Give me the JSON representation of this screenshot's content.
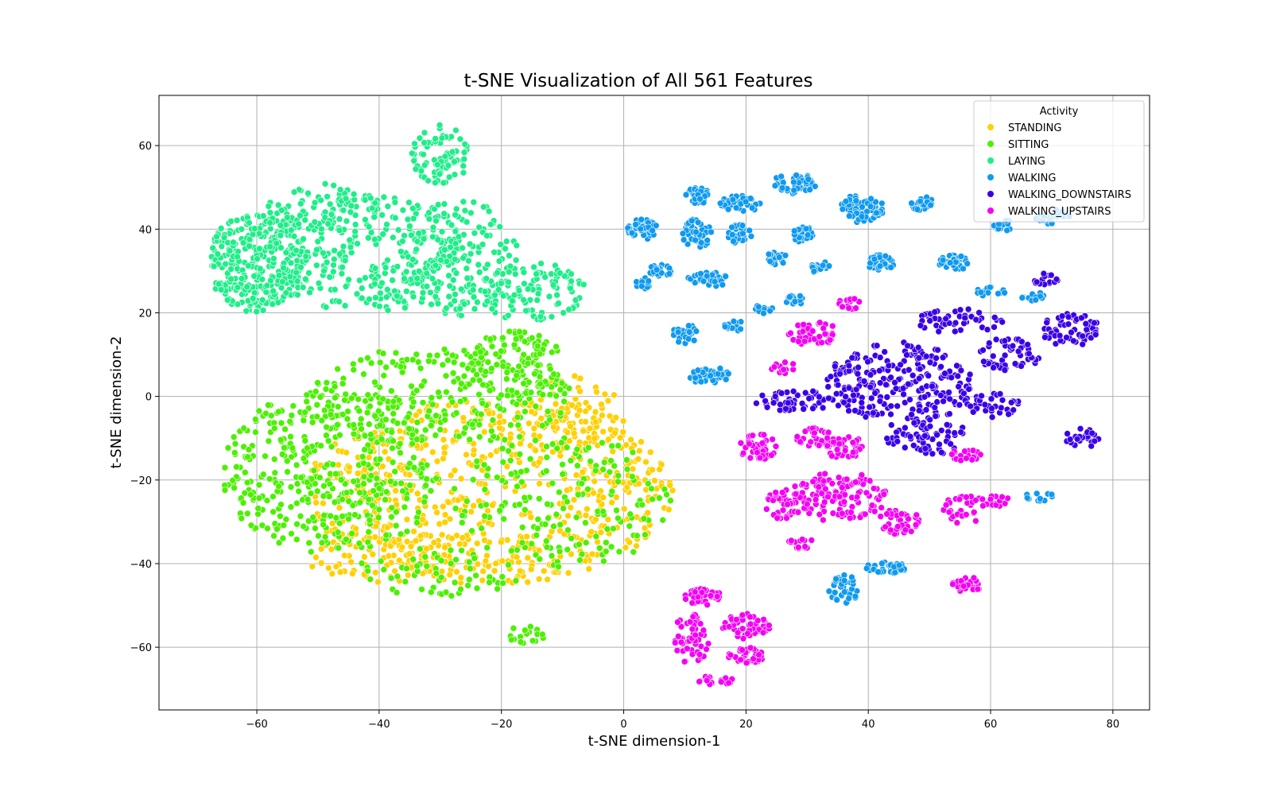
{
  "chart_data": {
    "type": "scatter",
    "title": "t-SNE Visualization of All 561 Features",
    "xlabel": "t-SNE dimension-1",
    "ylabel": "t-SNE dimension-2",
    "xlim": [
      -76,
      86
    ],
    "ylim": [
      -75,
      72
    ],
    "xticks": [
      -60,
      -40,
      -20,
      0,
      20,
      40,
      60,
      80
    ],
    "yticks": [
      -60,
      -40,
      -20,
      0,
      20,
      40,
      60
    ],
    "xtick_labels": [
      "−60",
      "−40",
      "−20",
      "0",
      "20",
      "40",
      "60",
      "80"
    ],
    "ytick_labels": [
      "−60",
      "−40",
      "−20",
      "0",
      "20",
      "40",
      "60"
    ],
    "grid": true,
    "legend": {
      "title": "Activity",
      "placement": "top-right"
    },
    "series": [
      {
        "name": "STANDING",
        "color": "#ffd000",
        "clusters": [
          {
            "cx": -22,
            "cy": -23,
            "rx": 30,
            "ry": 22,
            "n": 650
          },
          {
            "cx": -8,
            "cy": -5,
            "rx": 8,
            "ry": 10,
            "n": 90
          },
          {
            "cx": -40,
            "cy": -38,
            "rx": 12,
            "ry": 7,
            "n": 90
          }
        ]
      },
      {
        "name": "SITTING",
        "color": "#4cf000",
        "clusters": [
          {
            "cx": -48,
            "cy": -18,
            "rx": 18,
            "ry": 20,
            "n": 420
          },
          {
            "cx": -30,
            "cy": 0,
            "rx": 22,
            "ry": 12,
            "n": 260
          },
          {
            "cx": -18,
            "cy": 8,
            "rx": 8,
            "ry": 8,
            "n": 110
          },
          {
            "cx": -10,
            "cy": -25,
            "rx": 18,
            "ry": 16,
            "n": 180
          },
          {
            "cx": -30,
            "cy": -42,
            "rx": 14,
            "ry": 6,
            "n": 60
          },
          {
            "cx": -16,
            "cy": -57,
            "rx": 3,
            "ry": 2.5,
            "n": 18
          }
        ]
      },
      {
        "name": "LAYING",
        "color": "#1fee88",
        "clusters": [
          {
            "cx": -60,
            "cy": 32,
            "rx": 8,
            "ry": 12,
            "n": 300
          },
          {
            "cx": -42,
            "cy": 34,
            "rx": 16,
            "ry": 14,
            "n": 260
          },
          {
            "cx": -27,
            "cy": 33,
            "rx": 10,
            "ry": 14,
            "n": 190
          },
          {
            "cx": -30,
            "cy": 58,
            "rx": 5,
            "ry": 7,
            "n": 80
          },
          {
            "cx": -15,
            "cy": 25,
            "rx": 9,
            "ry": 7,
            "n": 110
          },
          {
            "cx": -50,
            "cy": 45,
            "rx": 10,
            "ry": 6,
            "n": 80
          }
        ]
      },
      {
        "name": "WALKING",
        "color": "#0f9af0",
        "clusters": [
          {
            "cx": 3,
            "cy": 40,
            "rx": 2.5,
            "ry": 2.5,
            "n": 45
          },
          {
            "cx": 12,
            "cy": 48,
            "rx": 2,
            "ry": 2,
            "n": 30
          },
          {
            "cx": 12,
            "cy": 39,
            "rx": 2.5,
            "ry": 3.5,
            "n": 50
          },
          {
            "cx": 19,
            "cy": 46,
            "rx": 3.5,
            "ry": 2,
            "n": 45
          },
          {
            "cx": 19,
            "cy": 39,
            "rx": 2,
            "ry": 2.5,
            "n": 30
          },
          {
            "cx": 28,
            "cy": 51,
            "rx": 3.5,
            "ry": 2.5,
            "n": 50
          },
          {
            "cx": 29,
            "cy": 39,
            "rx": 2,
            "ry": 2,
            "n": 25
          },
          {
            "cx": 39,
            "cy": 45,
            "rx": 3.5,
            "ry": 3.5,
            "n": 70
          },
          {
            "cx": 49,
            "cy": 46,
            "rx": 2,
            "ry": 1.8,
            "n": 25
          },
          {
            "cx": 6,
            "cy": 30,
            "rx": 2,
            "ry": 1.5,
            "n": 25
          },
          {
            "cx": 14,
            "cy": 28,
            "rx": 3.5,
            "ry": 1.8,
            "n": 40
          },
          {
            "cx": 3,
            "cy": 27,
            "rx": 1.5,
            "ry": 1.5,
            "n": 15
          },
          {
            "cx": 25,
            "cy": 33,
            "rx": 1.8,
            "ry": 1.5,
            "n": 20
          },
          {
            "cx": 32,
            "cy": 31,
            "rx": 1.8,
            "ry": 1.5,
            "n": 20
          },
          {
            "cx": 42,
            "cy": 32,
            "rx": 2.5,
            "ry": 1.8,
            "n": 35
          },
          {
            "cx": 54,
            "cy": 32,
            "rx": 2.5,
            "ry": 1.8,
            "n": 35
          },
          {
            "cx": 23,
            "cy": 21,
            "rx": 1.5,
            "ry": 1.2,
            "n": 15
          },
          {
            "cx": 28,
            "cy": 23,
            "rx": 1.8,
            "ry": 1.2,
            "n": 15
          },
          {
            "cx": 18,
            "cy": 17,
            "rx": 1.5,
            "ry": 1.5,
            "n": 15
          },
          {
            "cx": 10,
            "cy": 15,
            "rx": 2,
            "ry": 2.5,
            "n": 30
          },
          {
            "cx": 14,
            "cy": 5,
            "rx": 3.5,
            "ry": 2,
            "n": 45
          },
          {
            "cx": 60,
            "cy": 25,
            "rx": 2.5,
            "ry": 1.2,
            "n": 18
          },
          {
            "cx": 62,
            "cy": 41,
            "rx": 1.5,
            "ry": 1.5,
            "n": 15
          },
          {
            "cx": 70,
            "cy": 43,
            "rx": 3,
            "ry": 1.8,
            "n": 25
          },
          {
            "cx": 67,
            "cy": 24,
            "rx": 2,
            "ry": 1.2,
            "n": 15
          },
          {
            "cx": 68,
            "cy": -24,
            "rx": 2.5,
            "ry": 1,
            "n": 15
          },
          {
            "cx": 36,
            "cy": -46,
            "rx": 2.5,
            "ry": 3.5,
            "n": 40
          },
          {
            "cx": 43,
            "cy": -41,
            "rx": 3.5,
            "ry": 1.5,
            "n": 35
          }
        ]
      },
      {
        "name": "WALKING_DOWNSTAIRS",
        "color": "#3a00e8",
        "clusters": [
          {
            "cx": 45,
            "cy": 3,
            "rx": 12,
            "ry": 10,
            "n": 260
          },
          {
            "cx": 28,
            "cy": -1,
            "rx": 7,
            "ry": 2.5,
            "n": 50
          },
          {
            "cx": 55,
            "cy": 18,
            "rx": 7,
            "ry": 3,
            "n": 50
          },
          {
            "cx": 63,
            "cy": 10,
            "rx": 5,
            "ry": 4,
            "n": 55
          },
          {
            "cx": 73,
            "cy": 16,
            "rx": 5,
            "ry": 4,
            "n": 60
          },
          {
            "cx": 69,
            "cy": 28,
            "rx": 2,
            "ry": 1.5,
            "n": 15
          },
          {
            "cx": 50,
            "cy": -10,
            "rx": 7,
            "ry": 4,
            "n": 60
          },
          {
            "cx": 75,
            "cy": -10,
            "rx": 3,
            "ry": 2.5,
            "n": 25
          },
          {
            "cx": 60,
            "cy": -2,
            "rx": 5,
            "ry": 3,
            "n": 40
          }
        ]
      },
      {
        "name": "WALKING_UPSTAIRS",
        "color": "#f400f4",
        "clusters": [
          {
            "cx": 31,
            "cy": 15,
            "rx": 4,
            "ry": 3,
            "n": 45
          },
          {
            "cx": 37,
            "cy": 22,
            "rx": 2,
            "ry": 1.5,
            "n": 15
          },
          {
            "cx": 26,
            "cy": 7,
            "rx": 2,
            "ry": 1.5,
            "n": 12
          },
          {
            "cx": 22,
            "cy": -12,
            "rx": 3,
            "ry": 3.5,
            "n": 45
          },
          {
            "cx": 31,
            "cy": -10,
            "rx": 3,
            "ry": 2.5,
            "n": 30
          },
          {
            "cx": 36,
            "cy": -12,
            "rx": 3,
            "ry": 3,
            "n": 40
          },
          {
            "cx": 35,
            "cy": -24,
            "rx": 8,
            "ry": 6,
            "n": 130
          },
          {
            "cx": 26,
            "cy": -26,
            "rx": 3,
            "ry": 4,
            "n": 40
          },
          {
            "cx": 45,
            "cy": -30,
            "rx": 3.5,
            "ry": 3,
            "n": 45
          },
          {
            "cx": 29,
            "cy": -35,
            "rx": 2,
            "ry": 1.5,
            "n": 15
          },
          {
            "cx": 56,
            "cy": -14,
            "rx": 2.5,
            "ry": 1.5,
            "n": 20
          },
          {
            "cx": 56,
            "cy": -27,
            "rx": 4,
            "ry": 3.5,
            "n": 35
          },
          {
            "cx": 61,
            "cy": -25,
            "rx": 2,
            "ry": 1.5,
            "n": 12
          },
          {
            "cx": 56,
            "cy": -45,
            "rx": 2.5,
            "ry": 2,
            "n": 30
          },
          {
            "cx": 13,
            "cy": -48,
            "rx": 3,
            "ry": 2,
            "n": 40
          },
          {
            "cx": 11,
            "cy": -58,
            "rx": 3,
            "ry": 6,
            "n": 60
          },
          {
            "cx": 20,
            "cy": -55,
            "rx": 4,
            "ry": 3,
            "n": 45
          },
          {
            "cx": 20,
            "cy": -62,
            "rx": 3,
            "ry": 2,
            "n": 35
          },
          {
            "cx": 15,
            "cy": -68,
            "rx": 3,
            "ry": 1.2,
            "n": 20
          }
        ]
      }
    ]
  }
}
